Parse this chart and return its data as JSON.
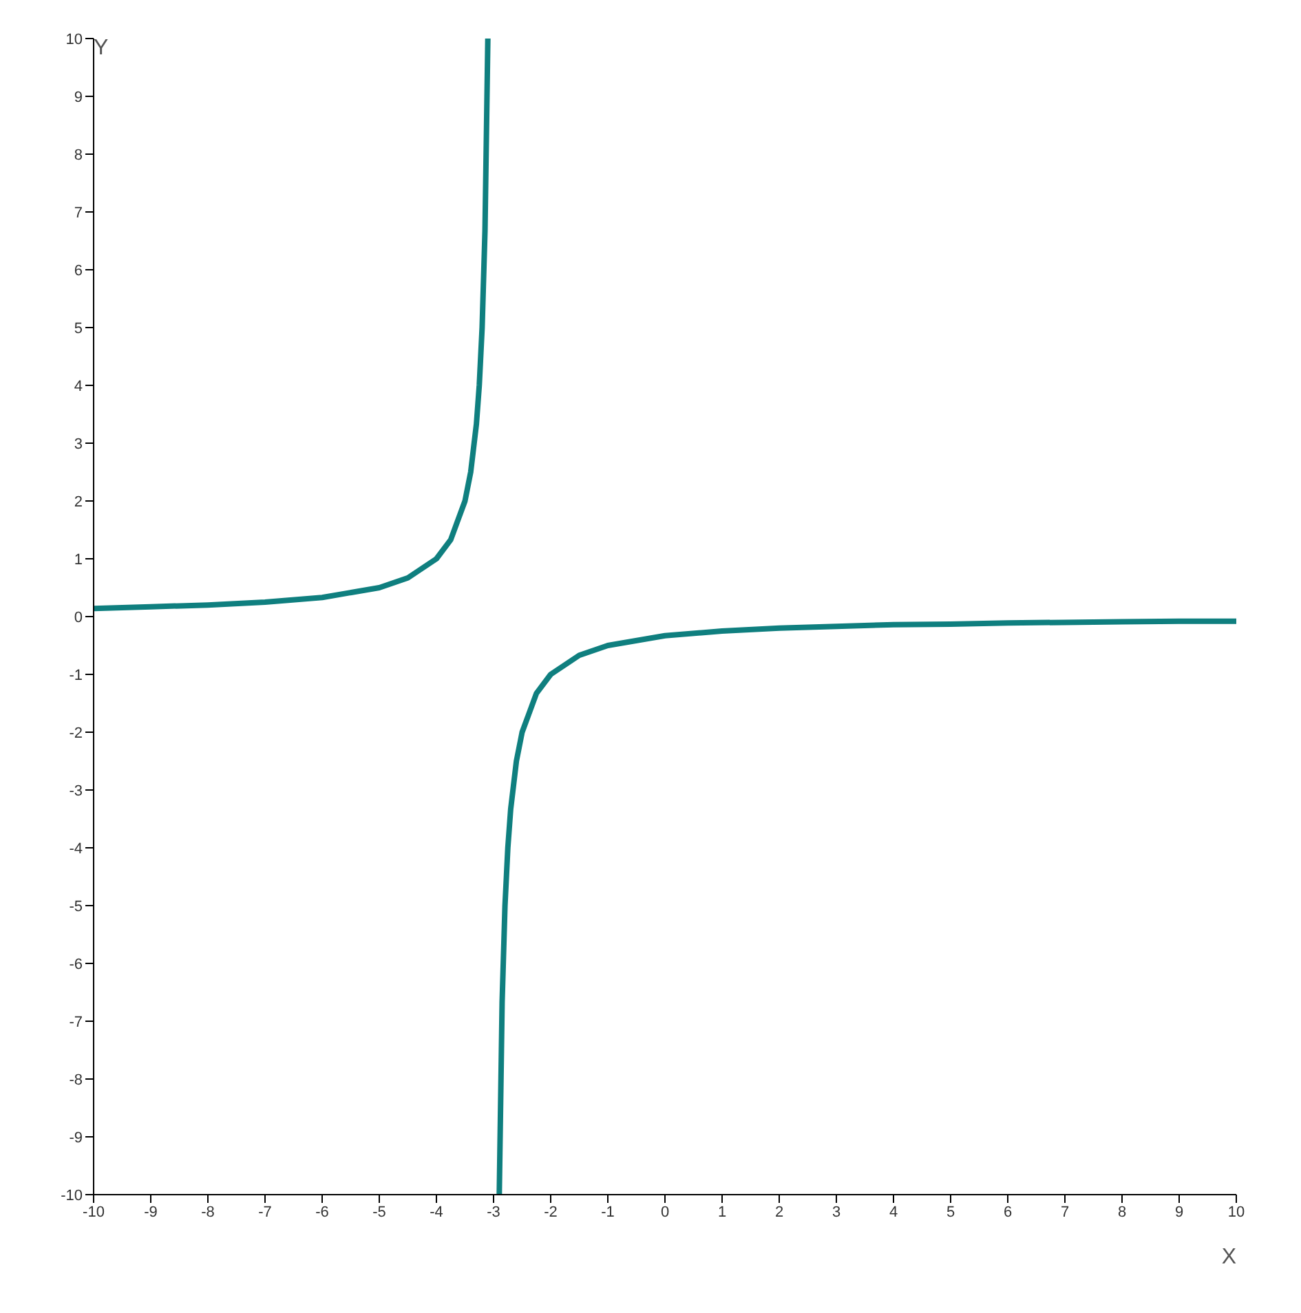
{
  "chart_data": {
    "type": "line",
    "xlabel": "X",
    "ylabel": "Y",
    "xlim": [
      -10,
      10
    ],
    "ylim": [
      -10,
      10
    ],
    "xticks": [
      -10,
      -9,
      -8,
      -7,
      -6,
      -5,
      -4,
      -3,
      -2,
      -1,
      0,
      1,
      2,
      3,
      4,
      5,
      6,
      7,
      8,
      9,
      10
    ],
    "yticks": [
      -10,
      -9,
      -8,
      -7,
      -6,
      -5,
      -4,
      -3,
      -2,
      -1,
      0,
      1,
      2,
      3,
      4,
      5,
      6,
      7,
      8,
      9,
      10
    ],
    "marker": "none",
    "line_style": "solid",
    "series": [
      {
        "color": "#0f7f7f",
        "x": [
          -10,
          -9,
          -8,
          -7,
          -6,
          -5,
          -4.5,
          -4,
          -3.75,
          -3.5,
          -3.4,
          -3.3,
          -3.25,
          -3.2,
          -3.15,
          -3.1
        ],
        "values": [
          0.14,
          0.17,
          0.2,
          0.25,
          0.33,
          0.5,
          0.67,
          1,
          1.33,
          2,
          2.5,
          3.33,
          4,
          5,
          6.67,
          10
        ]
      },
      {
        "color": "#0f7f7f",
        "x": [
          -2.9,
          -2.85,
          -2.8,
          -2.75,
          -2.7,
          -2.6,
          -2.5,
          -2.25,
          -2,
          -1.5,
          -1,
          0,
          1,
          2,
          3,
          4,
          5,
          6,
          7,
          8,
          9,
          10
        ],
        "values": [
          -10,
          -6.67,
          -5,
          -4,
          -3.33,
          -2.5,
          -2,
          -1.33,
          -1,
          -0.67,
          -0.5,
          -0.33,
          -0.25,
          -0.2,
          -0.17,
          -0.14,
          -0.13,
          -0.11,
          -0.1,
          -0.09,
          -0.08,
          -0.08
        ]
      }
    ]
  }
}
